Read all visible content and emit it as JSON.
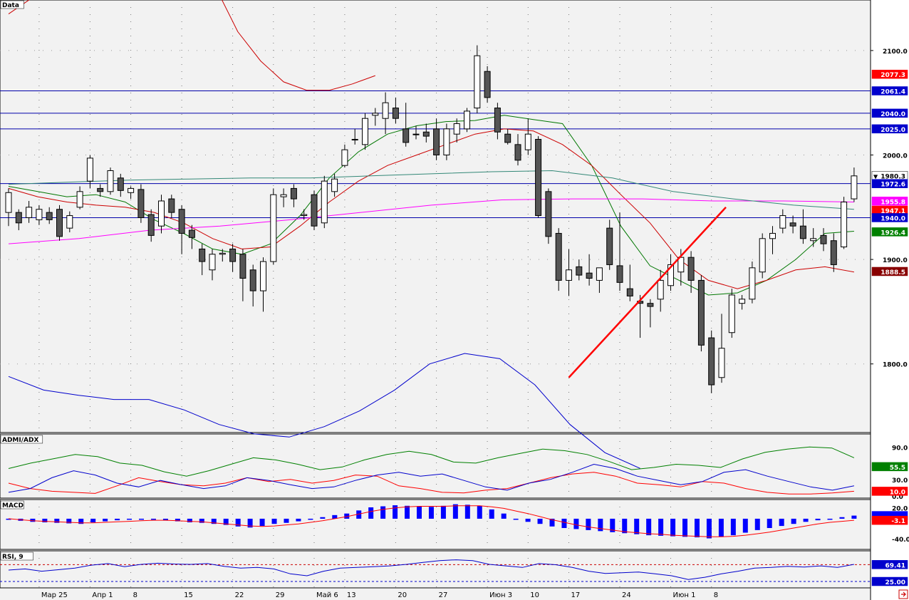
{
  "chart_data": {
    "type": "candlestick",
    "panels": [
      {
        "name": "Data",
        "price_axis": {
          "ticks": [
            "1800.0",
            "1900.0",
            "2000.0",
            "2100.0"
          ]
        },
        "range": [
          1735,
          2147
        ],
        "price_badges": [
          {
            "label": "2077.3",
            "value": 2077.3,
            "color": "#ff0000"
          },
          {
            "label": "2061.4",
            "value": 2061.4,
            "color": "#0000cc"
          },
          {
            "label": "2040.0",
            "value": 2040.0,
            "color": "#0000cc"
          },
          {
            "label": "2025.0",
            "value": 2025.0,
            "color": "#0000cc"
          },
          {
            "label": "1980.3",
            "value": 1980.3,
            "color": "#ffffff",
            "marker": "▼"
          },
          {
            "label": "1972.6",
            "value": 1972.6,
            "color": "#0000cc"
          },
          {
            "label": "1955.8",
            "value": 1955.8,
            "color": "#ff00ff"
          },
          {
            "label": "1947.1",
            "value": 1947.1,
            "color": "#ff0000"
          },
          {
            "label": "1940.0",
            "value": 1940.0,
            "color": "#0000cc"
          },
          {
            "label": "1926.4",
            "value": 1926.4,
            "color": "#008000"
          },
          {
            "label": "1888.5",
            "value": 1888.5,
            "color": "#880000"
          }
        ],
        "horizontal_levels": [
          2061.4,
          2040.0,
          2025.0,
          1972.6,
          1940.0
        ],
        "trendline": [
          {
            "bar": 55,
            "value": 1787
          },
          {
            "bar": 70,
            "value": 1950
          }
        ]
      },
      {
        "name": "ADMI/ADX",
        "axis": {
          "ticks": [
            "90.0",
            "30.0",
            "0.0"
          ]
        },
        "range": [
          0,
          112
        ],
        "value_badges": [
          {
            "label": "55.5",
            "value": 55.5,
            "color": "#008000"
          },
          {
            "label": "10.0",
            "value": 10.0,
            "color": "#ff0000"
          }
        ]
      },
      {
        "name": "MACD",
        "axis": {
          "ticks": [
            "20.0",
            "-40.0"
          ]
        },
        "range": [
          -58,
          33
        ],
        "value_badges": [
          {
            "label": "",
            "value": 6.0,
            "color": "#0000ff"
          },
          {
            "label": "-3.1",
            "value": -3.1,
            "color": "#ff0000"
          }
        ]
      },
      {
        "name": "RSI, 9",
        "range": [
          10,
          100
        ],
        "levels": [
          69.41,
          25.0
        ],
        "value_badges": [
          {
            "label": "69.41",
            "value": 69.41,
            "color": "#0000cc"
          },
          {
            "label": "25.00",
            "value": 25.0,
            "color": "#0000cc"
          }
        ]
      }
    ],
    "x_labels": [
      {
        "label": "Мар 25",
        "bar": 3
      },
      {
        "label": "Апр 1",
        "bar": 8
      },
      {
        "label": "8",
        "bar": 12
      },
      {
        "label": "15",
        "bar": 17
      },
      {
        "label": "22",
        "bar": 22
      },
      {
        "label": "29",
        "bar": 26
      },
      {
        "label": "Май 6",
        "bar": 30
      },
      {
        "label": "13",
        "bar": 33
      },
      {
        "label": "20",
        "bar": 38
      },
      {
        "label": "27",
        "bar": 42
      },
      {
        "label": "Июн 3",
        "bar": 47
      },
      {
        "label": "10",
        "bar": 51
      },
      {
        "label": "17",
        "bar": 55
      },
      {
        "label": "24",
        "bar": 60
      },
      {
        "label": "Июн 1",
        "bar": 65
      },
      {
        "label": "8",
        "bar": 69
      }
    ],
    "candles": [
      [
        1945,
        1964,
        1932,
        1968
      ],
      [
        1945,
        1935,
        1928,
        1948
      ],
      [
        1940,
        1950,
        1935,
        1956
      ],
      [
        1938,
        1948,
        1933,
        1952
      ],
      [
        1945,
        1938,
        1934,
        1950
      ],
      [
        1948,
        1922,
        1918,
        1952
      ],
      [
        1930,
        1942,
        1926,
        1946
      ],
      [
        1950,
        1965,
        1948,
        1970
      ],
      [
        1975,
        1997,
        1968,
        2000
      ],
      [
        1968,
        1965,
        1960,
        1972
      ],
      [
        1965,
        1985,
        1962,
        1988
      ],
      [
        1978,
        1966,
        1960,
        1982
      ],
      [
        1964,
        1968,
        1958,
        1970
      ],
      [
        1967,
        1940,
        1935,
        1972
      ],
      [
        1943,
        1923,
        1917,
        1948
      ],
      [
        1932,
        1956,
        1925,
        1962
      ],
      [
        1958,
        1945,
        1940,
        1962
      ],
      [
        1948,
        1925,
        1905,
        1952
      ],
      [
        1928,
        1921,
        1910,
        1933
      ],
      [
        1910,
        1898,
        1885,
        1915
      ],
      [
        1890,
        1905,
        1880,
        1910
      ],
      [
        1905,
        1906,
        1898,
        1910
      ],
      [
        1910,
        1898,
        1888,
        1915
      ],
      [
        1905,
        1882,
        1860,
        1910
      ],
      [
        1890,
        1870,
        1855,
        1895
      ],
      [
        1870,
        1898,
        1850,
        1902
      ],
      [
        1898,
        1962,
        1895,
        1968
      ],
      [
        1960,
        1962,
        1950,
        1968
      ],
      [
        1968,
        1958,
        1950,
        1972
      ],
      [
        1942,
        1943,
        1938,
        1948
      ],
      [
        1962,
        1932,
        1928,
        1966
      ],
      [
        1935,
        1975,
        1930,
        1980
      ],
      [
        1965,
        1977,
        1960,
        1982
      ],
      [
        1990,
        2005,
        1988,
        2010
      ],
      [
        2015,
        2015,
        2010,
        2025
      ],
      [
        2010,
        2035,
        2005,
        2040
      ],
      [
        2038,
        2040,
        2028,
        2045
      ],
      [
        2035,
        2050,
        2020,
        2060
      ],
      [
        2045,
        2035,
        2030,
        2055
      ],
      [
        2025,
        2012,
        2008,
        2050
      ],
      [
        2020,
        2020,
        2015,
        2028
      ],
      [
        2022,
        2018,
        2012,
        2030
      ],
      [
        2025,
        2000,
        1995,
        2035
      ],
      [
        2000,
        2025,
        1995,
        2030
      ],
      [
        2020,
        2030,
        2012,
        2035
      ],
      [
        2025,
        2042,
        2022,
        2045
      ],
      [
        2045,
        2095,
        2040,
        2105
      ],
      [
        2080,
        2055,
        2050,
        2085
      ],
      [
        2045,
        2022,
        2015,
        2050
      ],
      [
        2020,
        2012,
        2010,
        2025
      ],
      [
        2010,
        1995,
        1990,
        2020
      ],
      [
        2005,
        2020,
        2000,
        2035
      ],
      [
        2015,
        1942,
        1940,
        2018
      ],
      [
        1965,
        1922,
        1915,
        1968
      ],
      [
        1925,
        1880,
        1870,
        1930
      ],
      [
        1880,
        1890,
        1865,
        1910
      ],
      [
        1893,
        1885,
        1880,
        1900
      ],
      [
        1887,
        1882,
        1875,
        1905
      ],
      [
        1880,
        1892,
        1868,
        1890
      ],
      [
        1930,
        1895,
        1890,
        1938
      ],
      [
        1894,
        1878,
        1870,
        1945
      ],
      [
        1872,
        1865,
        1860,
        1895
      ],
      [
        1860,
        1858,
        1825,
        1866
      ],
      [
        1858,
        1855,
        1835,
        1862
      ],
      [
        1862,
        1880,
        1850,
        1890
      ],
      [
        1875,
        1895,
        1870,
        1905
      ],
      [
        1888,
        1902,
        1875,
        1910
      ],
      [
        1902,
        1880,
        1868,
        1908
      ],
      [
        1880,
        1818,
        1812,
        1885
      ],
      [
        1825,
        1780,
        1772,
        1832
      ],
      [
        1787,
        1815,
        1782,
        1848
      ],
      [
        1830,
        1866,
        1825,
        1872
      ],
      [
        1858,
        1862,
        1852,
        1866
      ],
      [
        1862,
        1892,
        1858,
        1898
      ],
      [
        1888,
        1920,
        1882,
        1925
      ],
      [
        1920,
        1925,
        1905,
        1932
      ],
      [
        1930,
        1942,
        1925,
        1948
      ],
      [
        1935,
        1932,
        1925,
        1942
      ],
      [
        1932,
        1920,
        1915,
        1948
      ],
      [
        1918,
        1920,
        1912,
        1930
      ],
      [
        1923,
        1915,
        1908,
        1930
      ],
      [
        1918,
        1895,
        1888,
        1925
      ],
      [
        1912,
        1955,
        1910,
        1960
      ],
      [
        1958,
        1980,
        1955,
        1988
      ]
    ],
    "overlays": [
      {
        "name": "",
        "color": "#cc0000",
        "values": [
          2135,
          2150,
          2160,
          2164,
          2160,
          2158,
          2160,
          2170,
          2175,
          2162,
          2118,
          2090,
          2070,
          2062,
          2062,
          2068,
          2076
        ]
      },
      {
        "name": "",
        "color": "#0000cc",
        "values": [
          1788,
          1775,
          1770,
          1766,
          1766,
          1756,
          1742,
          1733,
          1730,
          1740,
          1755,
          1775,
          1800,
          1810,
          1805,
          1780,
          1742,
          1715,
          1700
        ]
      },
      {
        "name": "",
        "color": "#007700",
        "values": [
          1970,
          1965,
          1960,
          1962,
          1955,
          1938,
          1925,
          1910,
          1905,
          1915,
          1942,
          1978,
          2003,
          2020,
          2028,
          2032,
          2033,
          2038,
          2034,
          2030,
          1990,
          1932,
          1894,
          1880,
          1866,
          1868,
          1880,
          1900,
          1925,
          1927
        ]
      },
      {
        "name": "",
        "color": "#cc0000",
        "values": [
          1968,
          1960,
          1955,
          1952,
          1950,
          1945,
          1935,
          1920,
          1910,
          1912,
          1932,
          1955,
          1975,
          1990,
          2000,
          2010,
          2020,
          2025,
          2023,
          2010,
          1990,
          1962,
          1935,
          1900,
          1880,
          1872,
          1880,
          1890,
          1893,
          1888
        ]
      },
      {
        "name": "",
        "color": "#ff00ff",
        "values": [
          1915,
          1920,
          1928,
          1932,
          1938,
          1945,
          1952,
          1957,
          1958,
          1958,
          1956,
          1956,
          1955
        ]
      },
      {
        "name": "",
        "color": "#338877",
        "values": [
          1972,
          1974,
          1976,
          1977,
          1978,
          1978,
          1980,
          1982,
          1984,
          1985,
          1978,
          1965,
          1958,
          1952,
          1948
        ]
      }
    ],
    "adx": {
      "green": [
        52,
        62,
        70,
        78,
        74,
        62,
        58,
        46,
        38,
        48,
        60,
        72,
        68,
        60,
        50,
        55,
        68,
        78,
        84,
        78,
        64,
        62,
        72,
        80,
        88,
        85,
        78,
        65,
        50,
        54,
        60,
        58,
        54,
        70,
        82,
        88,
        92,
        90,
        72
      ],
      "red": [
        25,
        15,
        10,
        8,
        6,
        20,
        35,
        28,
        22,
        20,
        25,
        35,
        28,
        32,
        25,
        30,
        40,
        38,
        20,
        15,
        8,
        7,
        12,
        15,
        25,
        35,
        42,
        45,
        38,
        25,
        22,
        18,
        28,
        25,
        15,
        8,
        5,
        5,
        7,
        10
      ],
      "blue": [
        8,
        15,
        35,
        48,
        40,
        25,
        18,
        30,
        22,
        15,
        20,
        35,
        30,
        22,
        15,
        18,
        30,
        40,
        45,
        38,
        42,
        30,
        18,
        12,
        25,
        32,
        45,
        60,
        52,
        38,
        30,
        22,
        28,
        45,
        50,
        38,
        28,
        18,
        12,
        20
      ]
    },
    "macd": {
      "hist": [
        0,
        -4,
        -6,
        -7,
        -8,
        -9,
        -10,
        -7,
        -5,
        -3,
        -2,
        -1,
        -1,
        -3,
        -5,
        -7,
        -8,
        -10,
        -12,
        -15,
        -17,
        -14,
        -10,
        -8,
        -5,
        -2,
        3,
        7,
        10,
        16,
        22,
        24,
        26,
        25,
        24,
        23,
        25,
        28,
        27,
        25,
        18,
        10,
        0,
        -6,
        -10,
        -15,
        -18,
        -20,
        -22,
        -24,
        -26,
        -28,
        -30,
        -32,
        -33,
        -34,
        -35,
        -36,
        -38,
        -35,
        -32,
        -27,
        -22,
        -18,
        -14,
        -10,
        -6,
        -3,
        0,
        3,
        6
      ],
      "signal": [
        0,
        -2,
        -4,
        -5,
        -6,
        -7,
        -8,
        -8,
        -7,
        -6,
        -5,
        -4,
        -3,
        -3,
        -4,
        -5,
        -6,
        -8,
        -10,
        -12,
        -14,
        -15,
        -14,
        -12,
        -10,
        -7,
        -4,
        0,
        4,
        9,
        14,
        18,
        21,
        23,
        24,
        24,
        24,
        25,
        25,
        25,
        23,
        20,
        15,
        10,
        4,
        -2,
        -7,
        -12,
        -16,
        -19,
        -22,
        -25,
        -27,
        -29,
        -30,
        -32,
        -33,
        -34,
        -35,
        -35,
        -34,
        -32,
        -29,
        -26,
        -22,
        -18,
        -14,
        -10,
        -7,
        -5,
        -3
      ]
    },
    "rsi": [
      55,
      58,
      52,
      56,
      60,
      68,
      72,
      64,
      70,
      73,
      71,
      70,
      72,
      65,
      60,
      62,
      58,
      45,
      40,
      52,
      60,
      62,
      64,
      66,
      70,
      75,
      80,
      82,
      80,
      70,
      66,
      62,
      72,
      69,
      62,
      52,
      46,
      48,
      50,
      45,
      40,
      30,
      36,
      45,
      52,
      60,
      62,
      65,
      63,
      66,
      62,
      70
    ]
  }
}
